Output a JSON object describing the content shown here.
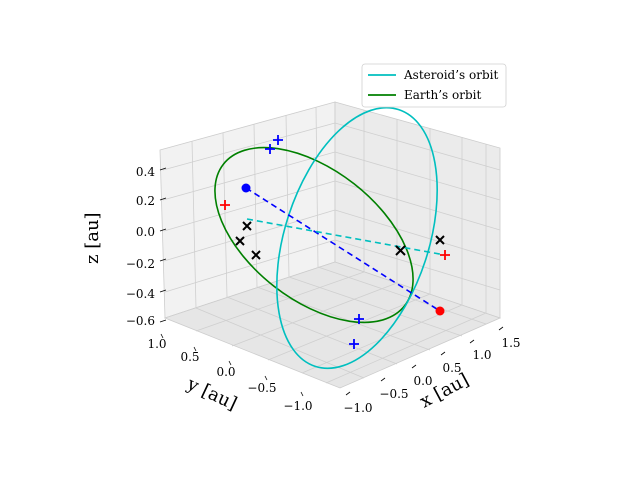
{
  "chart_data": {
    "type": "line",
    "projection": "3d",
    "xlabel": "x [au]",
    "ylabel": "y [au]",
    "zlabel": "z [au]",
    "xlim": [
      -1.2,
      1.6
    ],
    "ylim": [
      -1.2,
      1.1
    ],
    "zlim": [
      -0.6,
      0.5
    ],
    "xticks": [
      "−1.0",
      "−0.5",
      "0.0",
      "0.5",
      "1.0",
      "1.5"
    ],
    "yticks": [
      "−1.0",
      "−0.5",
      "0.0",
      "0.5",
      "1.0"
    ],
    "zticks": [
      "−0.6",
      "−0.4",
      "−0.2",
      "0.0",
      "0.2",
      "0.4"
    ],
    "grid": true,
    "legend": {
      "placement": "top-right",
      "entries": [
        {
          "label": "Asteroid’s orbit",
          "color": "#00bfbf"
        },
        {
          "label": "Earth’s orbit",
          "color": "#008000"
        }
      ]
    },
    "series": [
      {
        "name": "Asteroid’s orbit",
        "color": "#00bfbf",
        "shape": "ellipse",
        "description_points": {
          "perihelion_approx": [
            0.3,
            -1.0,
            -0.35
          ],
          "aphelion_approx": [
            1.2,
            0.9,
            0.45
          ]
        }
      },
      {
        "name": "Earth’s orbit",
        "color": "#008000",
        "shape": "ellipse",
        "radius": 1.0
      }
    ],
    "markers": {
      "blue_dots": [
        {
          "color": "#0000ff"
        }
      ],
      "red_dots": [
        {
          "color": "#ff0000"
        }
      ],
      "black_x_count": 6,
      "blue_plus_count": 4,
      "red_plus_count": 2
    },
    "colors": {
      "asteroid": "#00bfbf",
      "earth": "#008000",
      "blue": "#0000ff",
      "red": "#ff0000",
      "black": "#000000"
    }
  }
}
